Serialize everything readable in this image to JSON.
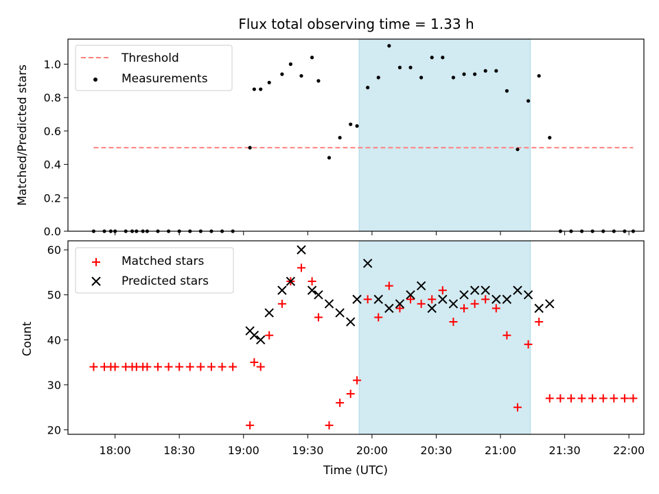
{
  "figure": {
    "title": "Flux total observing time = 1.33 h"
  },
  "colors": {
    "threshold": "#ff7f7f",
    "measurement": "#000000",
    "matched": "#ff0000",
    "predicted": "#000000",
    "shade": "#add8e6"
  },
  "chart_data": [
    {
      "type": "scatter",
      "ylabel": "Matched/Predicted stars",
      "xlabel": "",
      "ylim": [
        0,
        1.15
      ],
      "yticks": [
        0.0,
        0.2,
        0.4,
        0.6,
        0.8,
        1.0
      ],
      "ytick_labels": [
        "0.0",
        "0.2",
        "0.4",
        "0.6",
        "0.8",
        "1.0"
      ],
      "legend_position": "top-left",
      "shaded_interval": [
        "19:54",
        "21:14"
      ],
      "threshold": {
        "name": "Threshold",
        "value": 0.5,
        "x_range": [
          "17:50",
          "22:02"
        ],
        "style": "dashed"
      },
      "series": [
        {
          "name": "Measurements",
          "marker": "dot",
          "x": [
            "17:50",
            "17:55",
            "17:58",
            "18:00",
            "18:05",
            "18:08",
            "18:10",
            "18:13",
            "18:15",
            "18:20",
            "18:25",
            "18:30",
            "18:35",
            "18:40",
            "18:45",
            "18:50",
            "18:55",
            "19:03",
            "19:05",
            "19:08",
            "19:12",
            "19:18",
            "19:22",
            "19:27",
            "19:32",
            "19:35",
            "19:40",
            "19:45",
            "19:50",
            "19:53",
            "19:58",
            "20:03",
            "20:08",
            "20:13",
            "20:18",
            "20:23",
            "20:28",
            "20:33",
            "20:38",
            "20:43",
            "20:48",
            "20:53",
            "20:58",
            "21:03",
            "21:08",
            "21:13",
            "21:18",
            "21:23",
            "21:28",
            "21:33",
            "21:38",
            "21:43",
            "21:48",
            "21:53",
            "21:58",
            "22:02"
          ],
          "y": [
            0.0,
            0.0,
            0.0,
            0.0,
            0.0,
            0.0,
            0.0,
            0.0,
            0.0,
            0.0,
            0.0,
            0.0,
            0.0,
            0.0,
            0.0,
            0.0,
            0.0,
            0.5,
            0.85,
            0.85,
            0.89,
            0.94,
            1.0,
            0.93,
            1.04,
            0.9,
            0.44,
            0.56,
            0.64,
            0.63,
            0.86,
            0.92,
            1.11,
            0.98,
            0.98,
            0.92,
            1.04,
            1.04,
            0.92,
            0.94,
            0.94,
            0.96,
            0.96,
            0.84,
            0.49,
            0.78,
            0.93,
            0.56,
            0.0,
            0.0,
            0.0,
            0.0,
            0.0,
            0.0,
            0.0,
            0.0
          ]
        }
      ]
    },
    {
      "type": "scatter",
      "ylabel": "Count",
      "xlabel": "Time (UTC)",
      "ylim": [
        19,
        62
      ],
      "yticks": [
        20,
        30,
        40,
        50,
        60
      ],
      "ytick_labels": [
        "20",
        "30",
        "40",
        "50",
        "60"
      ],
      "xlim": [
        "17:38",
        "22:07"
      ],
      "xticks": [
        "18:00",
        "18:30",
        "19:00",
        "19:30",
        "20:00",
        "20:30",
        "21:00",
        "21:30",
        "22:00"
      ],
      "xtick_labels": [
        "18:00",
        "18:30",
        "19:00",
        "19:30",
        "20:00",
        "20:30",
        "21:00",
        "21:30",
        "22:00"
      ],
      "legend_position": "top-left",
      "shaded_interval": [
        "19:54",
        "21:14"
      ],
      "series": [
        {
          "name": "Matched stars",
          "marker": "plus",
          "x": [
            "17:50",
            "17:55",
            "17:58",
            "18:00",
            "18:05",
            "18:08",
            "18:10",
            "18:13",
            "18:15",
            "18:20",
            "18:25",
            "18:30",
            "18:35",
            "18:40",
            "18:45",
            "18:50",
            "18:55",
            "19:03",
            "19:05",
            "19:08",
            "19:12",
            "19:18",
            "19:22",
            "19:27",
            "19:32",
            "19:35",
            "19:40",
            "19:45",
            "19:50",
            "19:53",
            "19:58",
            "20:03",
            "20:08",
            "20:13",
            "20:18",
            "20:23",
            "20:28",
            "20:33",
            "20:38",
            "20:43",
            "20:48",
            "20:53",
            "20:58",
            "21:03",
            "21:08",
            "21:13",
            "21:18",
            "21:23",
            "21:28",
            "21:33",
            "21:38",
            "21:43",
            "21:48",
            "21:53",
            "21:58",
            "22:02"
          ],
          "y": [
            34,
            34,
            34,
            34,
            34,
            34,
            34,
            34,
            34,
            34,
            34,
            34,
            34,
            34,
            34,
            34,
            34,
            21,
            35,
            34,
            41,
            48,
            53,
            56,
            53,
            45,
            21,
            26,
            28,
            31,
            49,
            45,
            52,
            47,
            49,
            48,
            49,
            51,
            44,
            47,
            48,
            49,
            47,
            41,
            25,
            39,
            44,
            27,
            27,
            27,
            27,
            27,
            27,
            27,
            27,
            27
          ]
        },
        {
          "name": "Predicted stars",
          "marker": "x",
          "x": [
            "19:03",
            "19:05",
            "19:08",
            "19:12",
            "19:18",
            "19:22",
            "19:27",
            "19:32",
            "19:35",
            "19:40",
            "19:45",
            "19:50",
            "19:53",
            "19:58",
            "20:03",
            "20:08",
            "20:13",
            "20:18",
            "20:23",
            "20:28",
            "20:33",
            "20:38",
            "20:43",
            "20:48",
            "20:53",
            "20:58",
            "21:03",
            "21:08",
            "21:13",
            "21:18",
            "21:23",
            "21:28",
            "21:33"
          ],
          "y": [
            42,
            41,
            40,
            46,
            51,
            53,
            60,
            51,
            50,
            48,
            46,
            44,
            49,
            57,
            49,
            47,
            48,
            50,
            52,
            47,
            49,
            48,
            50,
            51,
            51,
            49,
            49,
            51,
            50,
            47,
            48,
            null,
            null
          ]
        }
      ]
    }
  ]
}
